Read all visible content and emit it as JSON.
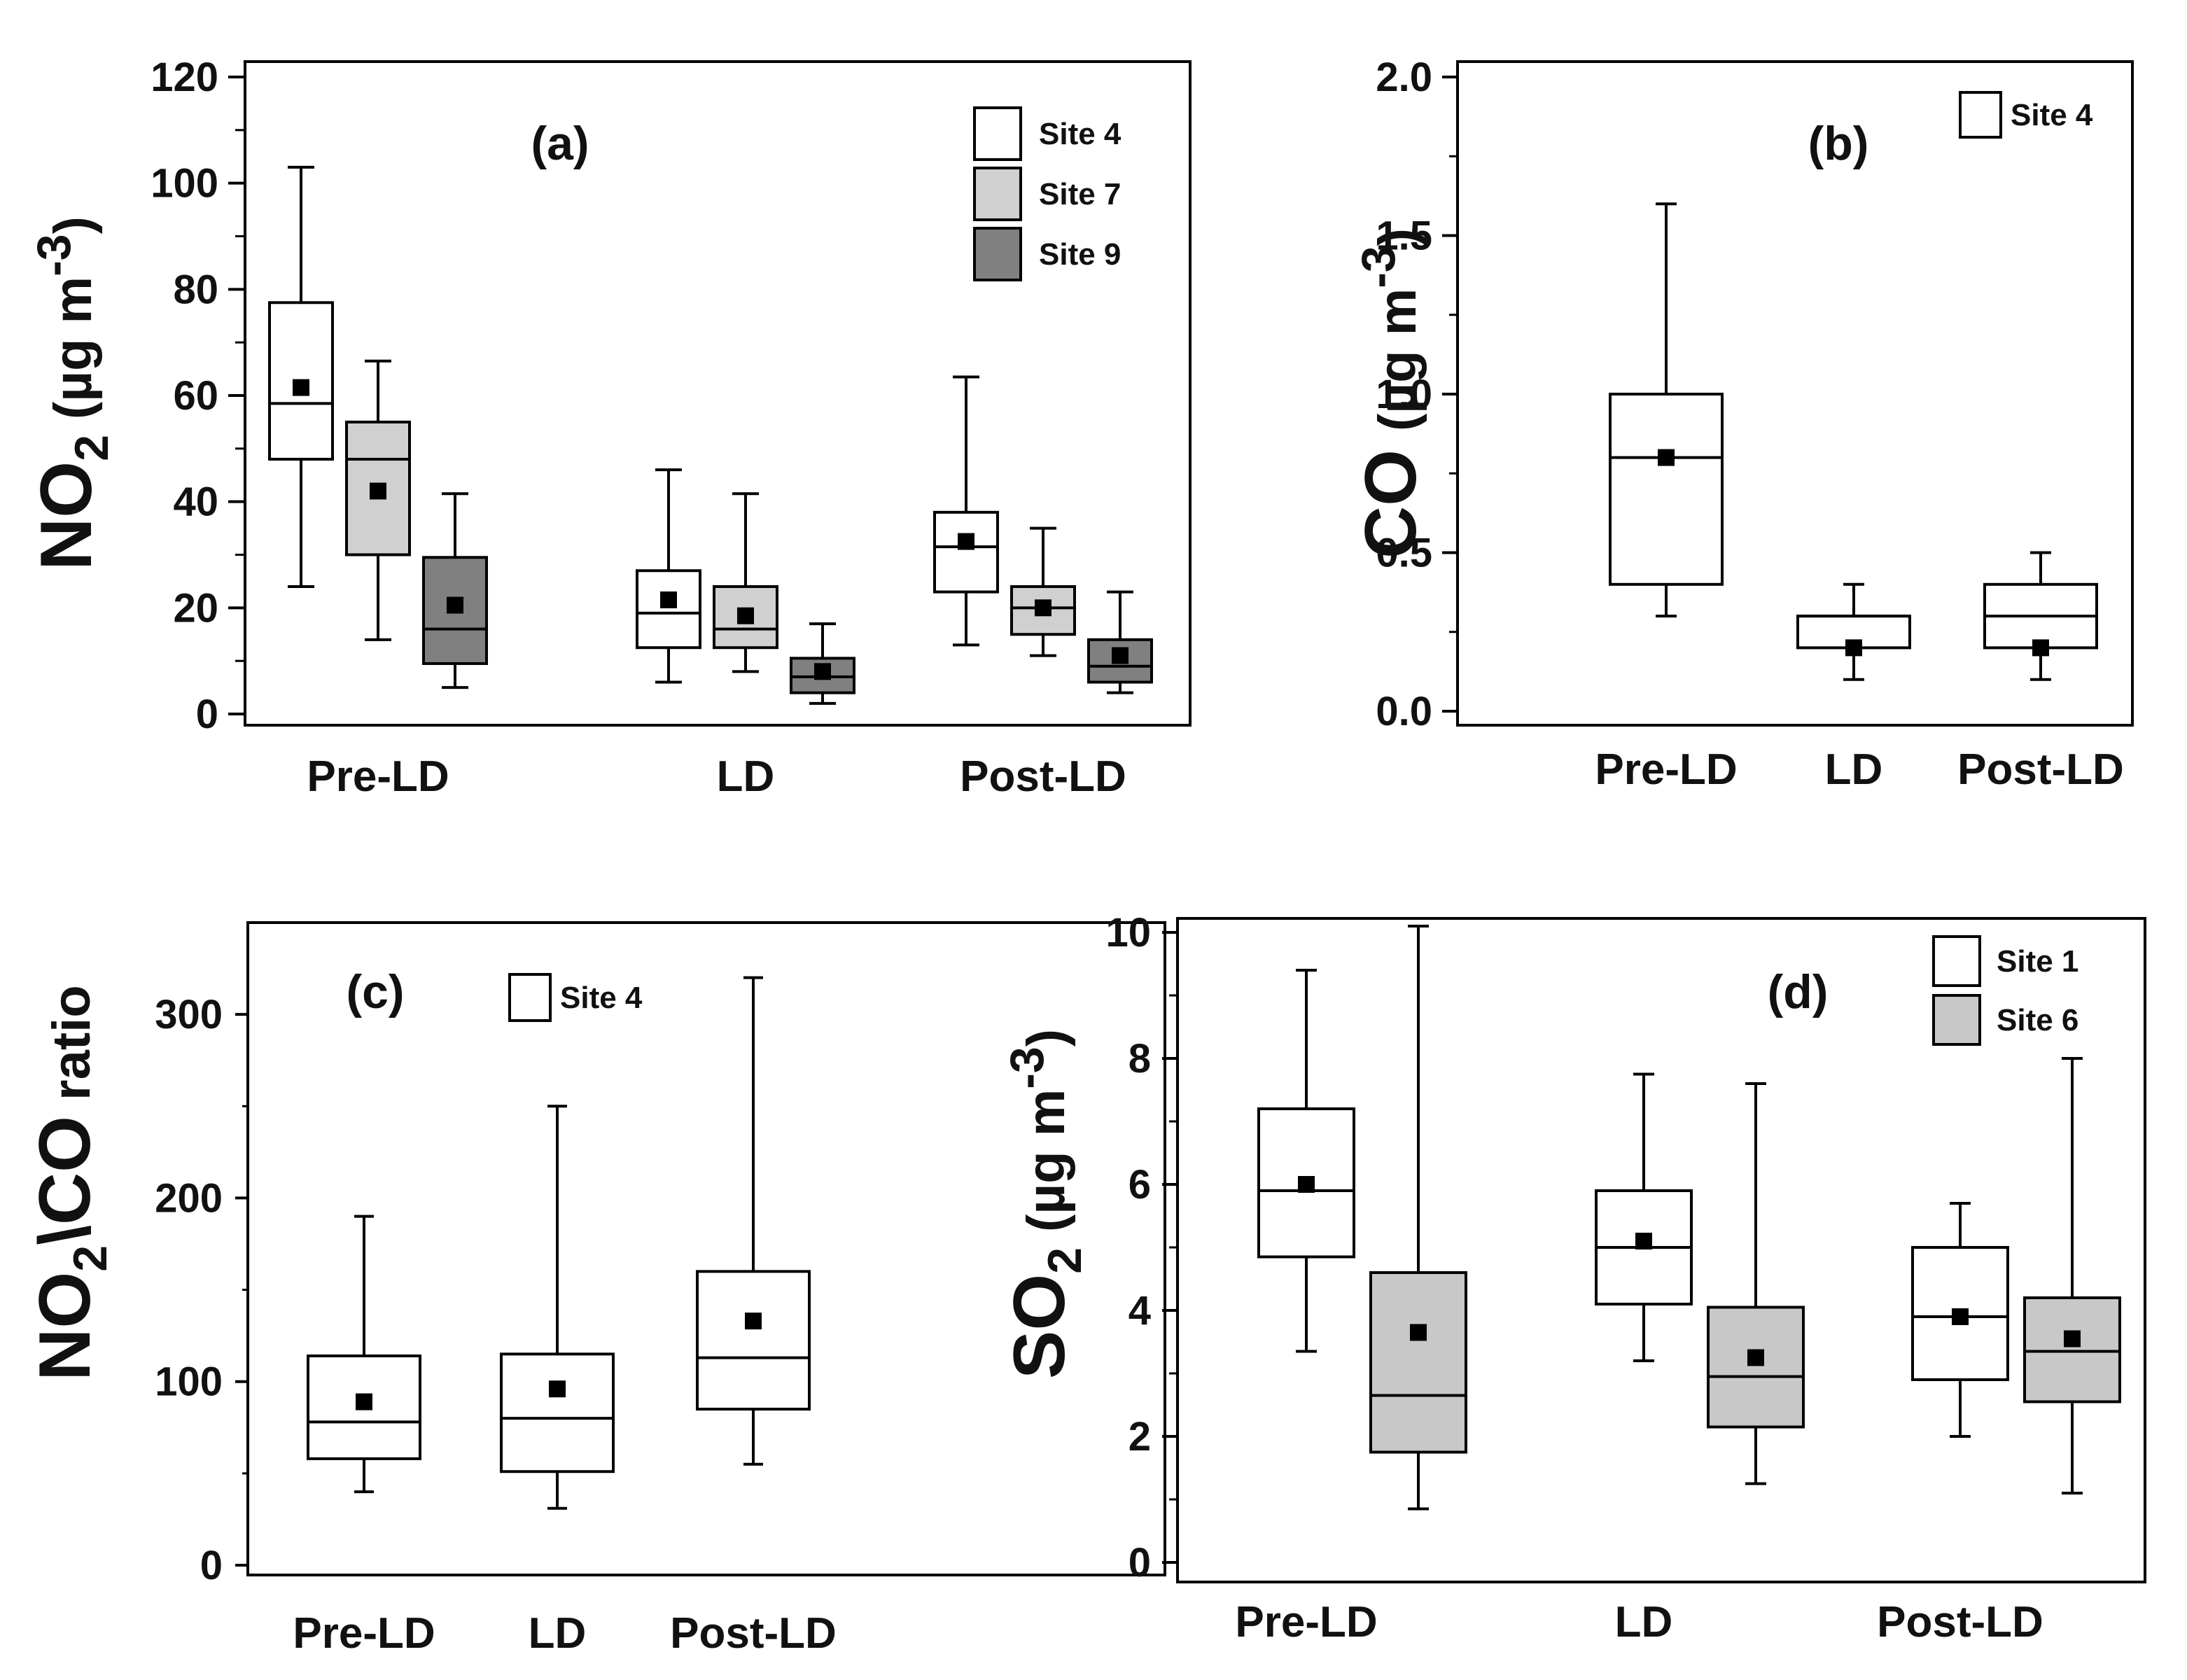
{
  "chart_data": [
    {
      "panel": "a",
      "type": "box",
      "panel_label": "(a)",
      "ylabel": {
        "species": "NO",
        "sub": "2",
        "units_open": "(µg m",
        "units_exp": "-3",
        "units_close": ")"
      },
      "ylim": [
        0,
        120
      ],
      "yticks": [
        "0",
        "20",
        "40",
        "60",
        "80",
        "100",
        "120"
      ],
      "categories": [
        "Pre-LD",
        "LD",
        "Post-LD"
      ],
      "legend": [
        "Site 4",
        "Site 7",
        "Site 9"
      ],
      "colors": {
        "Site 4": "#ffffff",
        "Site 7": "#d0d0d0",
        "Site 9": "#808080"
      },
      "series": [
        {
          "name": "Site 4",
          "boxes": [
            {
              "category": "Pre-LD",
              "min": 24,
              "q1": 48,
              "median": 58.5,
              "q3": 77.5,
              "max": 103,
              "mean": 61.5
            },
            {
              "category": "LD",
              "min": 6,
              "q1": 12.5,
              "median": 19,
              "q3": 27,
              "max": 46,
              "mean": 21.5
            },
            {
              "category": "Post-LD",
              "min": 13,
              "q1": 23,
              "median": 31.5,
              "q3": 38,
              "max": 63.5,
              "mean": 32.5
            }
          ]
        },
        {
          "name": "Site 7",
          "boxes": [
            {
              "category": "Pre-LD",
              "min": 14,
              "q1": 30,
              "median": 48,
              "q3": 55,
              "max": 66.5,
              "mean": 42
            },
            {
              "category": "LD",
              "min": 8,
              "q1": 12.5,
              "median": 16,
              "q3": 24,
              "max": 41.5,
              "mean": 18.5
            },
            {
              "category": "Post-LD",
              "min": 11,
              "q1": 15,
              "median": 20,
              "q3": 24,
              "max": 35,
              "mean": 20
            }
          ]
        },
        {
          "name": "Site 9",
          "boxes": [
            {
              "category": "Pre-LD",
              "min": 5,
              "q1": 9.5,
              "median": 16,
              "q3": 29.5,
              "max": 41.5,
              "mean": 20.5
            },
            {
              "category": "LD",
              "min": 2,
              "q1": 4,
              "median": 7,
              "q3": 10.5,
              "max": 17,
              "mean": 8
            },
            {
              "category": "Post-LD",
              "min": 4,
              "q1": 6,
              "median": 9,
              "q3": 14,
              "max": 23,
              "mean": 11
            }
          ]
        }
      ]
    },
    {
      "panel": "b",
      "type": "box",
      "panel_label": "(b)",
      "ylabel": {
        "species": "CO",
        "sub": "",
        "units_open": "(µg m",
        "units_exp": "-3",
        "units_close": ")"
      },
      "ylim": [
        0,
        2.0
      ],
      "yticks": [
        "0.0",
        "0.5",
        "1.0",
        "1.5",
        "2.0"
      ],
      "categories": [
        "Pre-LD",
        "LD",
        "Post-LD"
      ],
      "legend": [
        "Site 4"
      ],
      "colors": {
        "Site 4": "#ffffff"
      },
      "series": [
        {
          "name": "Site 4",
          "boxes": [
            {
              "category": "Pre-LD",
              "min": 0.3,
              "q1": 0.4,
              "median": 0.8,
              "q3": 1.0,
              "max": 1.6,
              "mean": 0.8
            },
            {
              "category": "LD",
              "min": 0.1,
              "q1": 0.2,
              "median": 0.3,
              "q3": 0.3,
              "max": 0.4,
              "mean": 0.2
            },
            {
              "category": "Post-LD",
              "min": 0.1,
              "q1": 0.2,
              "median": 0.3,
              "q3": 0.4,
              "max": 0.5,
              "mean": 0.2
            }
          ]
        }
      ]
    },
    {
      "panel": "c",
      "type": "box",
      "panel_label": "(c)",
      "ylabel": {
        "species": "NO",
        "sub": "2",
        "mid": "\\CO",
        "units_open": "ratio",
        "units_exp": "",
        "units_close": ""
      },
      "ylim": [
        0,
        350
      ],
      "yticks": [
        "0",
        "100",
        "200",
        "300"
      ],
      "categories": [
        "Pre-LD",
        "LD",
        "Post-LD"
      ],
      "legend": [
        "Site 4"
      ],
      "colors": {
        "Site 4": "#ffffff"
      },
      "series": [
        {
          "name": "Site 4",
          "boxes": [
            {
              "category": "Pre-LD",
              "min": 40,
              "q1": 58,
              "median": 78,
              "q3": 114,
              "max": 190,
              "mean": 89
            },
            {
              "category": "LD",
              "min": 31,
              "q1": 51,
              "median": 80,
              "q3": 115,
              "max": 250,
              "mean": 96
            },
            {
              "category": "Post-LD",
              "min": 55,
              "q1": 85,
              "median": 113,
              "q3": 160,
              "max": 320,
              "mean": 133
            }
          ]
        }
      ]
    },
    {
      "panel": "d",
      "type": "box",
      "panel_label": "(d)",
      "ylabel": {
        "species": "SO",
        "sub": "2",
        "units_open": "(µg m",
        "units_exp": "-3",
        "units_close": ")"
      },
      "ylim": [
        0,
        10
      ],
      "yticks": [
        "0",
        "2",
        "4",
        "6",
        "8",
        "10"
      ],
      "categories": [
        "Pre-LD",
        "LD",
        "Post-LD"
      ],
      "legend": [
        "Site 1",
        "Site 6"
      ],
      "colors": {
        "Site 1": "#ffffff",
        "Site 6": "#c8c8c8"
      },
      "series": [
        {
          "name": "Site 1",
          "boxes": [
            {
              "category": "Pre-LD",
              "min": 3.35,
              "q1": 4.85,
              "median": 5.9,
              "q3": 7.2,
              "max": 9.4,
              "mean": 6.0
            },
            {
              "category": "LD",
              "min": 3.2,
              "q1": 4.1,
              "median": 5.0,
              "q3": 5.9,
              "max": 7.75,
              "mean": 5.1
            },
            {
              "category": "Post-LD",
              "min": 2.0,
              "q1": 2.9,
              "median": 3.9,
              "q3": 5.0,
              "max": 5.7,
              "mean": 3.9
            }
          ]
        },
        {
          "name": "Site 6",
          "boxes": [
            {
              "category": "Pre-LD",
              "min": 0.85,
              "q1": 1.75,
              "median": 2.65,
              "q3": 4.6,
              "max": 10.1,
              "mean": 3.65
            },
            {
              "category": "LD",
              "min": 1.25,
              "q1": 2.15,
              "median": 2.95,
              "q3": 4.05,
              "max": 7.6,
              "mean": 3.25
            },
            {
              "category": "Post-LD",
              "min": 1.1,
              "q1": 2.55,
              "median": 3.35,
              "q3": 4.2,
              "max": 8.0,
              "mean": 3.55
            }
          ]
        }
      ]
    }
  ]
}
